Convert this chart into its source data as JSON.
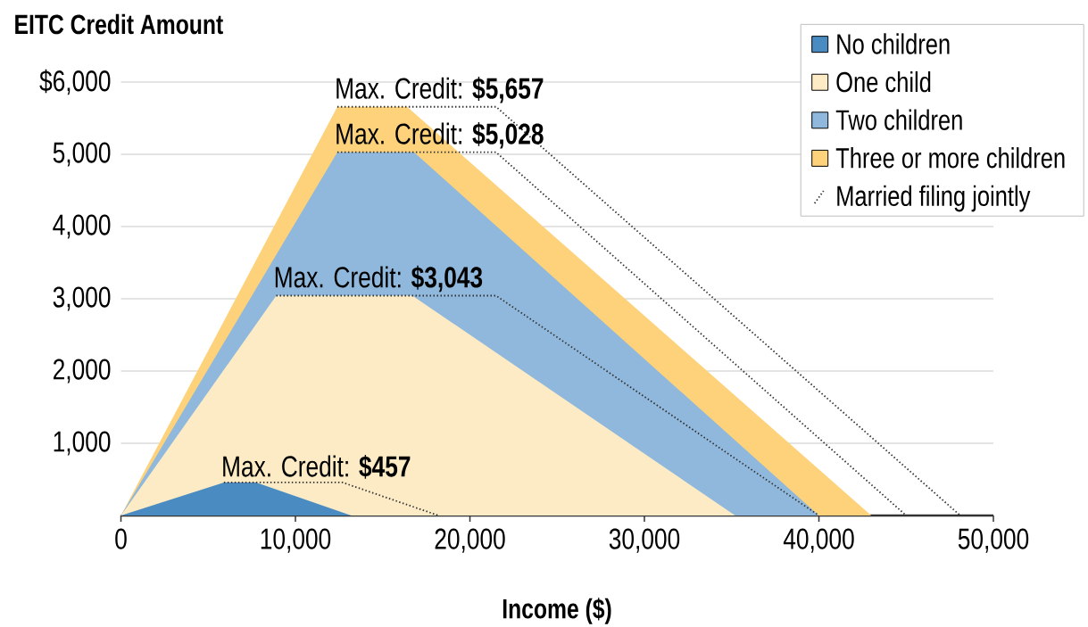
{
  "chart_data": {
    "type": "area",
    "title": "EITC Credit Amount",
    "xlabel": "Income ($)",
    "xlim": [
      0,
      50000
    ],
    "ylim": [
      0,
      6000
    ],
    "xticks": [
      0,
      {
        "value": 10000,
        "label": "10,000"
      },
      {
        "value": 20000,
        "label": "20,000"
      },
      {
        "value": 30000,
        "label": "30,000"
      },
      {
        "value": 40000,
        "label": "40,000"
      },
      {
        "value": 50000,
        "label": "50,000"
      }
    ],
    "yticks": [
      {
        "value": 1000,
        "label": "1,000"
      },
      {
        "value": 2000,
        "label": "2,000"
      },
      {
        "value": 3000,
        "label": "3,000"
      },
      {
        "value": 4000,
        "label": "4,000"
      },
      {
        "value": 5000,
        "label": "5,000"
      },
      {
        "value": 6000,
        "label": "$6,000"
      }
    ],
    "grid": "y",
    "legend": "top right",
    "series": [
      {
        "name": "No children",
        "color": "#4a8bc2",
        "x": [
          0,
          5900,
          7750,
          13200
        ],
        "values": [
          0,
          457,
          457,
          0
        ]
      },
      {
        "name": "One child",
        "color": "#fdebc6",
        "x": [
          0,
          8900,
          16700,
          35200
        ],
        "values": [
          0,
          3043,
          3043,
          0
        ]
      },
      {
        "name": "Two children",
        "color": "#8fb8dc",
        "x": [
          0,
          12400,
          16800,
          40000
        ],
        "values": [
          0,
          5028,
          5028,
          0
        ]
      },
      {
        "name": "Three or more children",
        "color": "#fdd27a",
        "x": [
          0,
          12400,
          16400,
          43000
        ],
        "values": [
          0,
          5657,
          5657,
          0
        ]
      },
      {
        "name": "Married filing jointly",
        "type": "line",
        "line_style": "dotted",
        "color": "#333333",
        "x": [
          5900,
          12700,
          18200
        ],
        "values": [
          457,
          457,
          0
        ]
      },
      {
        "type": "line",
        "line_style": "dotted",
        "color": "#333333",
        "x": [
          8900,
          21500,
          40000
        ],
        "values": [
          3043,
          3043,
          0
        ]
      },
      {
        "type": "line",
        "line_style": "dotted",
        "color": "#333333",
        "x": [
          12400,
          21500,
          45000
        ],
        "values": [
          5028,
          5028,
          0
        ]
      },
      {
        "type": "line",
        "line_style": "dotted",
        "color": "#333333",
        "x": [
          12400,
          21500,
          48100
        ],
        "values": [
          5657,
          5657,
          0
        ]
      }
    ],
    "annotations": [
      {
        "text": "Max. Credit: **$457**",
        "x": 5900,
        "y": 457
      },
      {
        "text": "Max. Credit: **$3,043**",
        "x": 8900,
        "y": 3043
      },
      {
        "text": "Max. Credit: **$5,028**",
        "x": 12400,
        "y": 5028
      },
      {
        "text": "Max. Credit: **$5,657**",
        "x": 12400,
        "y": 5657
      }
    ]
  }
}
